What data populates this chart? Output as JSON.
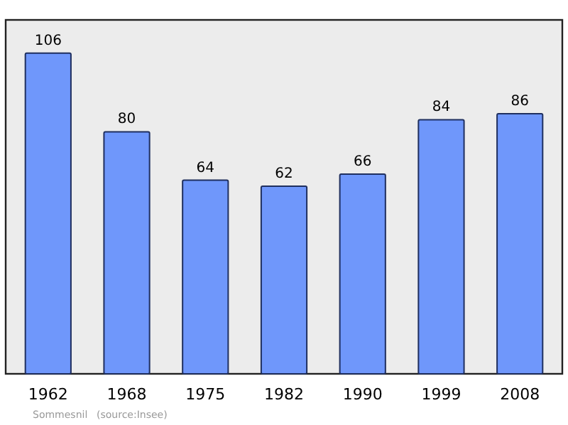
{
  "chart_data": {
    "type": "bar",
    "categories": [
      "1962",
      "1968",
      "1975",
      "1982",
      "1990",
      "1999",
      "2008"
    ],
    "values": [
      106,
      80,
      64,
      62,
      66,
      84,
      86
    ],
    "color": "#6f97fb",
    "ylim": [
      0,
      117
    ],
    "tick_labels": "x",
    "data_labels": true,
    "annotations": [
      "Sommesnil",
      "(source:Insee)"
    ]
  }
}
